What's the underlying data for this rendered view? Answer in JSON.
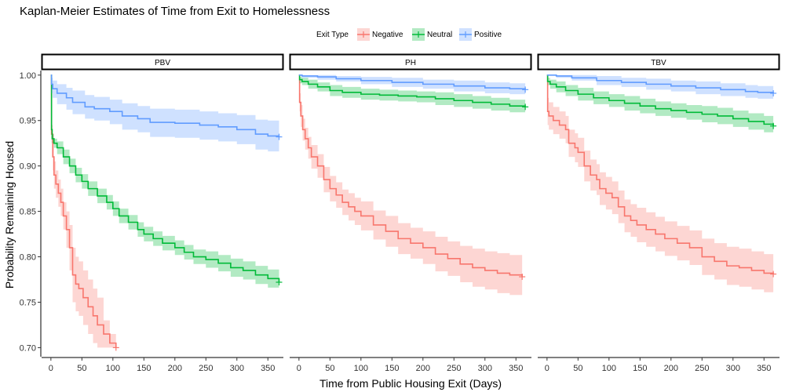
{
  "chart_data": {
    "type": "line",
    "subtype": "kaplan-meier-step",
    "title": "Kaplan-Meier Estimates of Time from Exit to Homelessness",
    "xlabel": "Time from Public Housing Exit (Days)",
    "ylabel": "Probability Remaining Housed",
    "xlim": [
      -15,
      375
    ],
    "ylim": [
      0.69,
      1.005
    ],
    "x_ticks": [
      0,
      50,
      100,
      150,
      200,
      250,
      300,
      350
    ],
    "y_ticks": [
      0.7,
      0.75,
      0.8,
      0.85,
      0.9,
      0.95,
      1.0
    ],
    "y_tick_labels": [
      "0.70",
      "0.75",
      "0.80",
      "0.85",
      "0.90",
      "0.95",
      "1.00"
    ],
    "grid": false,
    "legend": {
      "title": "Exit Type",
      "placement": "top",
      "entries": [
        {
          "name": "Negative",
          "color": "#F8766D"
        },
        {
          "name": "Neutral",
          "color": "#00BA38"
        },
        {
          "name": "Positive",
          "color": "#619CFF"
        }
      ]
    },
    "panels": [
      {
        "label": "PBV",
        "series": [
          {
            "name": "Negative",
            "color": "#F8766D",
            "x": [
              0,
              1,
              3,
              5,
              8,
              12,
              16,
              20,
              25,
              30,
              35,
              40,
              45,
              52,
              60,
              68,
              75,
              85,
              95,
              105
            ],
            "y": [
              1.0,
              0.935,
              0.91,
              0.89,
              0.88,
              0.87,
              0.86,
              0.845,
              0.83,
              0.81,
              0.78,
              0.77,
              0.765,
              0.755,
              0.745,
              0.735,
              0.725,
              0.715,
              0.705,
              0.7
            ],
            "ci_upper": [
              1.0,
              0.945,
              0.925,
              0.905,
              0.895,
              0.885,
              0.875,
              0.86,
              0.85,
              0.835,
              0.81,
              0.8,
              0.795,
              0.785,
              0.775,
              0.765,
              0.755,
              0.73,
              0.715,
              0.705
            ],
            "ci_lower": [
              1.0,
              0.925,
              0.895,
              0.875,
              0.865,
              0.855,
              0.845,
              0.83,
              0.81,
              0.785,
              0.75,
              0.74,
              0.735,
              0.725,
              0.715,
              0.705,
              0.7,
              0.7,
              0.7,
              0.7
            ]
          },
          {
            "name": "Neutral",
            "color": "#00BA38",
            "x": [
              0,
              1,
              2,
              5,
              10,
              20,
              30,
              40,
              50,
              60,
              75,
              90,
              100,
              110,
              125,
              140,
              150,
              165,
              180,
              200,
              215,
              230,
              250,
              270,
              290,
              310,
              330,
              350,
              368
            ],
            "y": [
              1.0,
              0.94,
              0.93,
              0.925,
              0.92,
              0.91,
              0.9,
              0.89,
              0.883,
              0.875,
              0.867,
              0.86,
              0.853,
              0.845,
              0.838,
              0.83,
              0.825,
              0.82,
              0.815,
              0.81,
              0.805,
              0.8,
              0.797,
              0.793,
              0.788,
              0.785,
              0.78,
              0.776,
              0.772
            ],
            "ci_upper": [
              1.0,
              0.945,
              0.935,
              0.93,
              0.927,
              0.918,
              0.908,
              0.898,
              0.891,
              0.883,
              0.875,
              0.868,
              0.861,
              0.853,
              0.846,
              0.838,
              0.833,
              0.828,
              0.823,
              0.818,
              0.813,
              0.808,
              0.806,
              0.802,
              0.798,
              0.795,
              0.79,
              0.786,
              0.783
            ],
            "ci_lower": [
              1.0,
              0.935,
              0.925,
              0.92,
              0.913,
              0.902,
              0.892,
              0.882,
              0.875,
              0.867,
              0.859,
              0.852,
              0.845,
              0.837,
              0.83,
              0.822,
              0.817,
              0.812,
              0.807,
              0.802,
              0.797,
              0.792,
              0.788,
              0.784,
              0.778,
              0.775,
              0.77,
              0.766,
              0.762
            ]
          },
          {
            "name": "Positive",
            "color": "#619CFF",
            "x": [
              0,
              1,
              3,
              10,
              25,
              35,
              55,
              70,
              95,
              115,
              140,
              160,
              200,
              240,
              270,
              300,
              330,
              350,
              368
            ],
            "y": [
              1.0,
              0.99,
              0.985,
              0.98,
              0.975,
              0.97,
              0.965,
              0.963,
              0.96,
              0.955,
              0.952,
              0.948,
              0.947,
              0.945,
              0.943,
              0.94,
              0.935,
              0.933,
              0.932
            ],
            "ci_upper": [
              1.0,
              0.997,
              0.994,
              0.99,
              0.986,
              0.983,
              0.978,
              0.976,
              0.973,
              0.969,
              0.966,
              0.963,
              0.962,
              0.96,
              0.958,
              0.956,
              0.951,
              0.95,
              0.949
            ],
            "ci_lower": [
              1.0,
              0.98,
              0.975,
              0.968,
              0.962,
              0.957,
              0.952,
              0.95,
              0.946,
              0.94,
              0.937,
              0.932,
              0.931,
              0.929,
              0.927,
              0.924,
              0.918,
              0.916,
              0.915
            ]
          }
        ]
      },
      {
        "label": "PH",
        "series": [
          {
            "name": "Negative",
            "color": "#F8766D",
            "x": [
              0,
              1,
              3,
              6,
              10,
              15,
              20,
              30,
              40,
              50,
              60,
              70,
              80,
              90,
              100,
              120,
              140,
              160,
              180,
              200,
              220,
              240,
              260,
              280,
              300,
              320,
              340,
              360
            ],
            "y": [
              1.0,
              0.97,
              0.955,
              0.94,
              0.93,
              0.92,
              0.91,
              0.9,
              0.885,
              0.875,
              0.868,
              0.86,
              0.855,
              0.85,
              0.845,
              0.835,
              0.828,
              0.82,
              0.815,
              0.81,
              0.803,
              0.798,
              0.792,
              0.788,
              0.785,
              0.782,
              0.78,
              0.778
            ],
            "ci_upper": [
              1.0,
              0.98,
              0.967,
              0.952,
              0.942,
              0.932,
              0.923,
              0.913,
              0.899,
              0.889,
              0.882,
              0.874,
              0.87,
              0.865,
              0.861,
              0.851,
              0.845,
              0.837,
              0.832,
              0.828,
              0.822,
              0.817,
              0.812,
              0.809,
              0.806,
              0.804,
              0.802,
              0.8
            ],
            "ci_lower": [
              1.0,
              0.96,
              0.943,
              0.928,
              0.918,
              0.908,
              0.897,
              0.887,
              0.871,
              0.861,
              0.854,
              0.846,
              0.84,
              0.835,
              0.829,
              0.819,
              0.811,
              0.803,
              0.798,
              0.792,
              0.784,
              0.779,
              0.772,
              0.767,
              0.764,
              0.76,
              0.758,
              0.756
            ]
          },
          {
            "name": "Neutral",
            "color": "#00BA38",
            "x": [
              0,
              1,
              5,
              15,
              30,
              50,
              70,
              100,
              130,
              160,
              190,
              220,
              250,
              280,
              310,
              340,
              365
            ],
            "y": [
              1.0,
              0.995,
              0.993,
              0.99,
              0.987,
              0.983,
              0.981,
              0.979,
              0.978,
              0.977,
              0.976,
              0.974,
              0.972,
              0.97,
              0.968,
              0.966,
              0.965
            ],
            "ci_upper": [
              1.0,
              0.998,
              0.997,
              0.995,
              0.992,
              0.989,
              0.987,
              0.985,
              0.984,
              0.983,
              0.982,
              0.981,
              0.979,
              0.977,
              0.975,
              0.973,
              0.972
            ],
            "ci_lower": [
              1.0,
              0.991,
              0.989,
              0.985,
              0.982,
              0.977,
              0.975,
              0.973,
              0.972,
              0.971,
              0.97,
              0.967,
              0.965,
              0.963,
              0.961,
              0.959,
              0.958
            ]
          },
          {
            "name": "Positive",
            "color": "#619CFF",
            "x": [
              0,
              5,
              30,
              60,
              100,
              150,
              200,
              250,
              300,
              340,
              365
            ],
            "y": [
              1.0,
              0.999,
              0.998,
              0.996,
              0.994,
              0.992,
              0.99,
              0.988,
              0.986,
              0.985,
              0.984
            ],
            "ci_upper": [
              1.0,
              1.0,
              1.0,
              0.999,
              0.998,
              0.997,
              0.995,
              0.994,
              0.992,
              0.991,
              0.99
            ],
            "ci_lower": [
              1.0,
              0.997,
              0.995,
              0.993,
              0.99,
              0.987,
              0.985,
              0.982,
              0.98,
              0.979,
              0.978
            ]
          }
        ]
      },
      {
        "label": "TBV",
        "series": [
          {
            "name": "Negative",
            "color": "#F8766D",
            "x": [
              0,
              1,
              3,
              10,
              20,
              30,
              35,
              45,
              50,
              60,
              70,
              80,
              85,
              95,
              105,
              115,
              125,
              135,
              145,
              160,
              175,
              190,
              210,
              230,
              250,
              270,
              290,
              310,
              330,
              350,
              365
            ],
            "y": [
              1.0,
              0.96,
              0.955,
              0.95,
              0.945,
              0.94,
              0.925,
              0.92,
              0.915,
              0.9,
              0.89,
              0.885,
              0.875,
              0.87,
              0.865,
              0.855,
              0.845,
              0.84,
              0.835,
              0.83,
              0.825,
              0.82,
              0.815,
              0.81,
              0.8,
              0.795,
              0.79,
              0.788,
              0.785,
              0.782,
              0.781
            ],
            "ci_upper": [
              1.0,
              0.975,
              0.97,
              0.965,
              0.96,
              0.955,
              0.94,
              0.936,
              0.931,
              0.917,
              0.907,
              0.902,
              0.893,
              0.888,
              0.883,
              0.873,
              0.863,
              0.858,
              0.854,
              0.849,
              0.844,
              0.839,
              0.834,
              0.829,
              0.82,
              0.815,
              0.811,
              0.809,
              0.806,
              0.803,
              0.802
            ],
            "ci_lower": [
              1.0,
              0.945,
              0.94,
              0.935,
              0.93,
              0.925,
              0.91,
              0.904,
              0.899,
              0.883,
              0.873,
              0.868,
              0.857,
              0.852,
              0.847,
              0.837,
              0.827,
              0.822,
              0.816,
              0.811,
              0.806,
              0.801,
              0.796,
              0.791,
              0.78,
              0.775,
              0.769,
              0.767,
              0.764,
              0.761,
              0.76
            ]
          },
          {
            "name": "Neutral",
            "color": "#00BA38",
            "x": [
              0,
              1,
              5,
              15,
              30,
              50,
              75,
              100,
              125,
              150,
              175,
              200,
              225,
              250,
              275,
              300,
              325,
              350,
              365
            ],
            "y": [
              1.0,
              0.993,
              0.99,
              0.987,
              0.983,
              0.979,
              0.975,
              0.972,
              0.969,
              0.966,
              0.963,
              0.961,
              0.959,
              0.957,
              0.955,
              0.952,
              0.949,
              0.946,
              0.944
            ],
            "ci_upper": [
              1.0,
              0.997,
              0.995,
              0.993,
              0.989,
              0.986,
              0.982,
              0.979,
              0.977,
              0.974,
              0.971,
              0.969,
              0.967,
              0.966,
              0.964,
              0.961,
              0.958,
              0.955,
              0.953
            ],
            "ci_lower": [
              1.0,
              0.989,
              0.985,
              0.981,
              0.977,
              0.972,
              0.968,
              0.965,
              0.961,
              0.958,
              0.955,
              0.953,
              0.951,
              0.948,
              0.946,
              0.943,
              0.94,
              0.937,
              0.935
            ]
          },
          {
            "name": "Positive",
            "color": "#619CFF",
            "x": [
              0,
              15,
              40,
              80,
              120,
              160,
              200,
              240,
              280,
              320,
              340,
              365
            ],
            "y": [
              1.0,
              0.999,
              0.997,
              0.994,
              0.992,
              0.99,
              0.988,
              0.986,
              0.984,
              0.982,
              0.981,
              0.98
            ],
            "ci_upper": [
              1.0,
              1.0,
              1.0,
              0.999,
              0.997,
              0.996,
              0.994,
              0.993,
              0.991,
              0.989,
              0.988,
              0.987
            ],
            "ci_lower": [
              1.0,
              0.997,
              0.994,
              0.989,
              0.987,
              0.984,
              0.982,
              0.979,
              0.977,
              0.975,
              0.974,
              0.973
            ]
          }
        ]
      }
    ]
  }
}
